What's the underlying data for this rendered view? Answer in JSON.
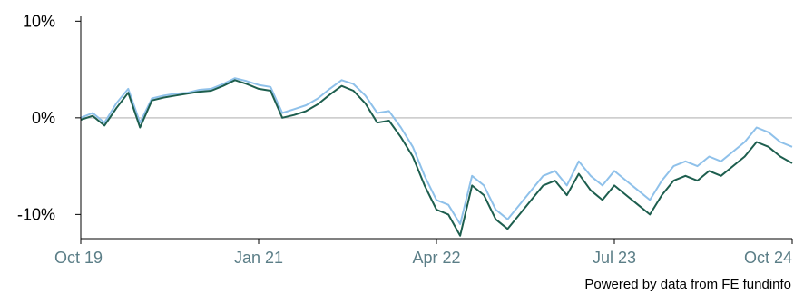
{
  "chart_data": {
    "type": "line",
    "title": "",
    "xlabel": "",
    "ylabel": "",
    "x_ticks": [
      "Oct 19",
      "Jan 21",
      "Apr 22",
      "Jul 23",
      "Oct 24"
    ],
    "y_ticks": [
      "10%",
      "0%",
      "-10%"
    ],
    "y_tick_values": [
      10,
      0,
      -10
    ],
    "ylim": [
      -12.5,
      10.5
    ],
    "xlim": [
      "2019-10",
      "2024-10"
    ],
    "grid": false,
    "zero_line": true,
    "legend": "none",
    "credit": "Powered by data from FE fundinfo",
    "colors": {
      "series_a": "#8fc1ea",
      "series_b": "#1d5e4e",
      "zero_line": "#c8c8c8",
      "axis": "#000000",
      "x_tick_text": "#5b7e87"
    },
    "series": [
      {
        "color": "#8fc1ea",
        "x": [
          "2019-10",
          "2019-11",
          "2019-12",
          "2020-01",
          "2020-02",
          "2020-03",
          "2020-04",
          "2020-05",
          "2020-06",
          "2020-07",
          "2020-08",
          "2020-09",
          "2020-10",
          "2020-11",
          "2020-12",
          "2021-01",
          "2021-02",
          "2021-03",
          "2021-04",
          "2021-05",
          "2021-06",
          "2021-07",
          "2021-08",
          "2021-09",
          "2021-10",
          "2021-11",
          "2021-12",
          "2022-01",
          "2022-02",
          "2022-03",
          "2022-04",
          "2022-05",
          "2022-06",
          "2022-07",
          "2022-08",
          "2022-09",
          "2022-10",
          "2022-11",
          "2022-12",
          "2023-01",
          "2023-02",
          "2023-03",
          "2023-04",
          "2023-05",
          "2023-06",
          "2023-07",
          "2023-08",
          "2023-09",
          "2023-10",
          "2023-11",
          "2023-12",
          "2024-01",
          "2024-02",
          "2024-03",
          "2024-04",
          "2024-05",
          "2024-06",
          "2024-07",
          "2024-08",
          "2024-09",
          "2024-10"
        ],
        "values": [
          0,
          0.5,
          -0.5,
          1.5,
          3.0,
          -0.5,
          2.0,
          2.3,
          2.5,
          2.6,
          2.9,
          3.0,
          3.5,
          4.1,
          3.8,
          3.4,
          3.2,
          0.5,
          0.9,
          1.3,
          2.0,
          3.0,
          3.9,
          3.5,
          2.3,
          0.5,
          0.7,
          -1.0,
          -3.0,
          -6.0,
          -8.5,
          -9.0,
          -11.0,
          -6.0,
          -7.0,
          -9.5,
          -10.5,
          -9.0,
          -7.5,
          -6.0,
          -5.5,
          -7.0,
          -4.5,
          -6.0,
          -7.0,
          -5.5,
          -6.5,
          -7.5,
          -8.5,
          -6.5,
          -5.0,
          -4.5,
          -5.0,
          -4.0,
          -4.5,
          -3.5,
          -2.5,
          -1.0,
          -1.5,
          -2.5,
          -3.0
        ]
      },
      {
        "color": "#1d5e4e",
        "x": [
          "2019-10",
          "2019-11",
          "2019-12",
          "2020-01",
          "2020-02",
          "2020-03",
          "2020-04",
          "2020-05",
          "2020-06",
          "2020-07",
          "2020-08",
          "2020-09",
          "2020-10",
          "2020-11",
          "2020-12",
          "2021-01",
          "2021-02",
          "2021-03",
          "2021-04",
          "2021-05",
          "2021-06",
          "2021-07",
          "2021-08",
          "2021-09",
          "2021-10",
          "2021-11",
          "2021-12",
          "2022-01",
          "2022-02",
          "2022-03",
          "2022-04",
          "2022-05",
          "2022-06",
          "2022-07",
          "2022-08",
          "2022-09",
          "2022-10",
          "2022-11",
          "2022-12",
          "2023-01",
          "2023-02",
          "2023-03",
          "2023-04",
          "2023-05",
          "2023-06",
          "2023-07",
          "2023-08",
          "2023-09",
          "2023-10",
          "2023-11",
          "2023-12",
          "2024-01",
          "2024-02",
          "2024-03",
          "2024-04",
          "2024-05",
          "2024-06",
          "2024-07",
          "2024-08",
          "2024-09",
          "2024-10"
        ],
        "values": [
          -0.2,
          0.2,
          -0.8,
          1.0,
          2.6,
          -1.0,
          1.8,
          2.1,
          2.3,
          2.5,
          2.7,
          2.8,
          3.3,
          3.9,
          3.5,
          3.0,
          2.8,
          0.0,
          0.3,
          0.7,
          1.4,
          2.4,
          3.3,
          2.8,
          1.5,
          -0.5,
          -0.3,
          -2.0,
          -4.0,
          -7.0,
          -9.5,
          -10.0,
          -12.2,
          -7.0,
          -8.0,
          -10.5,
          -11.5,
          -10.0,
          -8.5,
          -7.0,
          -6.5,
          -8.0,
          -5.8,
          -7.5,
          -8.5,
          -7.0,
          -8.0,
          -9.0,
          -10.0,
          -8.0,
          -6.5,
          -6.0,
          -6.5,
          -5.5,
          -6.0,
          -5.0,
          -4.0,
          -2.5,
          -3.0,
          -4.0,
          -4.7
        ]
      }
    ]
  }
}
